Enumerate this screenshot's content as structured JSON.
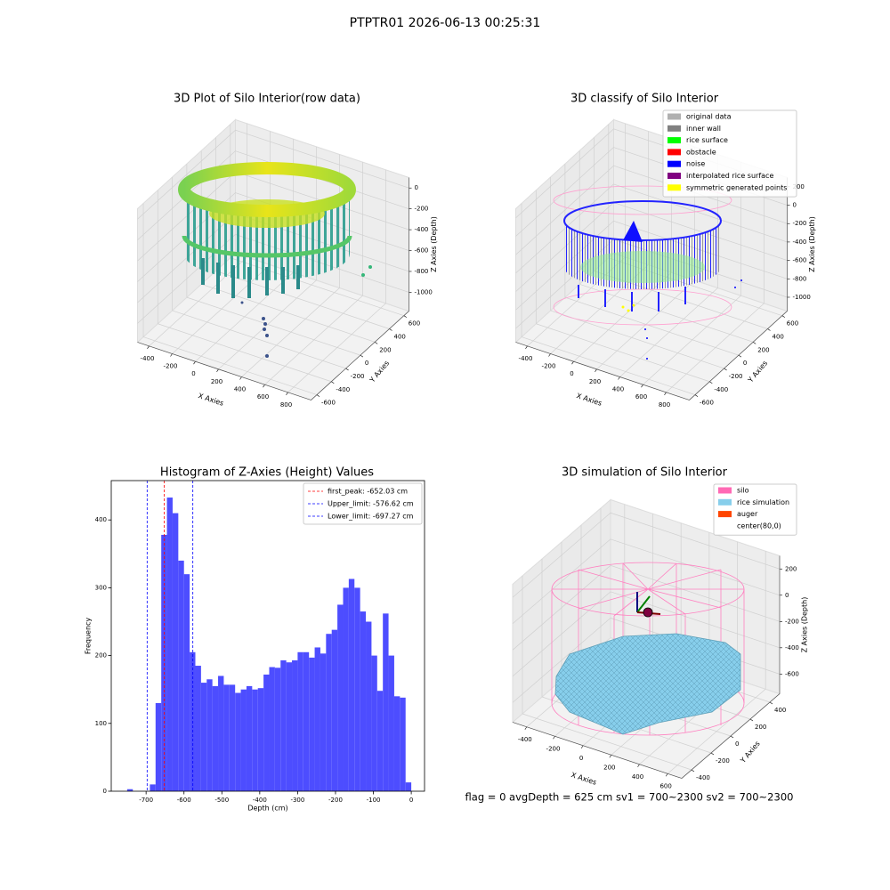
{
  "suptitle": "PTPTR01 2026-06-13 00:25:31",
  "footer": "flag = 0     avgDepth = 625 cm  sv1 = 700~2300  sv2 = 700~2300",
  "chart_data": [
    {
      "type": "scatter3d",
      "title": "3D Plot of Silo Interior(row data)",
      "xlabel": "X Axies",
      "ylabel": "Y Axies",
      "zlabel": "Z Axies (Depth)",
      "xlim": [
        -500,
        1000
      ],
      "ylim": [
        -680,
        670
      ],
      "zlim": [
        -1180,
        100
      ],
      "xticks": [
        -400,
        -200,
        0,
        200,
        400,
        600,
        800
      ],
      "yticks": [
        -600,
        -400,
        -200,
        0,
        200,
        400,
        600
      ],
      "zticks": [
        0,
        -200,
        -400,
        -600,
        -800,
        -1000
      ]
    },
    {
      "type": "scatter3d",
      "title": "3D classify of Silo Interior",
      "xlabel": "X Axies",
      "ylabel": "Y Axies",
      "zlabel": "Z Axies (Depth)",
      "xlim": [
        -500,
        1000
      ],
      "ylim": [
        -680,
        670
      ],
      "zlim": [
        -1150,
        300
      ],
      "xticks": [
        -400,
        -200,
        0,
        200,
        400,
        600,
        800
      ],
      "yticks": [
        -600,
        -400,
        -200,
        0,
        200,
        400,
        600
      ],
      "zticks": [
        200,
        0,
        -200,
        -400,
        -600,
        -800,
        -1000
      ],
      "legend_loc": "upper right",
      "legend": [
        {
          "name": "original data",
          "color": "#b0b0b0"
        },
        {
          "name": "inner wall",
          "color": "#808080"
        },
        {
          "name": "rice surface",
          "color": "#00ff00"
        },
        {
          "name": "obstacle",
          "color": "#ff0000"
        },
        {
          "name": "noise",
          "color": "#0000ff"
        },
        {
          "name": "interpolated rice surface",
          "color": "#800080"
        },
        {
          "name": "symmetric generated points",
          "color": "#ffff00"
        }
      ]
    },
    {
      "type": "histogram",
      "title": "Histogram of Z-Axies (Height) Values",
      "xlabel": "Depth (cm)",
      "ylabel": "Frequency",
      "color": "#4d4dff",
      "xlim": [
        -792,
        35
      ],
      "ylim": [
        0,
        458
      ],
      "xticks": [
        -700,
        -600,
        -500,
        -400,
        -300,
        -200,
        -100,
        0
      ],
      "yticks": [
        0,
        100,
        200,
        300,
        400
      ],
      "bins": [
        -765,
        -750,
        -735,
        -720,
        -705,
        -690,
        -675,
        -660,
        -645,
        -630,
        -615,
        -600,
        -585,
        -570,
        -555,
        -540,
        -525,
        -510,
        -495,
        -480,
        -465,
        -450,
        -435,
        -420,
        -405,
        -390,
        -375,
        -360,
        -345,
        -330,
        -315,
        -300,
        -285,
        -270,
        -255,
        -240,
        -225,
        -210,
        -195,
        -180,
        -165,
        -150,
        -135,
        -120,
        -105,
        -90,
        -75,
        -60,
        -45,
        -30,
        -15,
        0
      ],
      "counts": [
        0,
        3,
        0,
        0,
        0,
        10,
        130,
        378,
        433,
        410,
        340,
        320,
        205,
        185,
        160,
        165,
        155,
        170,
        157,
        157,
        145,
        150,
        155,
        150,
        152,
        172,
        183,
        182,
        193,
        190,
        193,
        205,
        205,
        197,
        212,
        203,
        232,
        238,
        275,
        300,
        313,
        300,
        265,
        250,
        200,
        148,
        262,
        200,
        140,
        138,
        13
      ],
      "legend_loc": "upper right",
      "lines": [
        {
          "value": -652.03,
          "label": "first_peak: -652.03 cm",
          "color": "#ff0000"
        },
        {
          "value": -576.62,
          "label": "Upper_limit: -576.62 cm",
          "color": "#0000ff"
        },
        {
          "value": -697.27,
          "label": "Lower_limit: -697.27 cm",
          "color": "#0000ff"
        }
      ]
    },
    {
      "type": "surface3d",
      "title": "3D simulation of Silo Interior",
      "xlabel": "X Axies",
      "ylabel": "Y Axies",
      "zlabel": "Z Axies (Depth)",
      "xlim": [
        -500,
        700
      ],
      "ylim": [
        -500,
        500
      ],
      "zlim": [
        -750,
        300
      ],
      "xticks": [
        -400,
        -200,
        0,
        200,
        400,
        600
      ],
      "yticks": [
        -400,
        -200,
        0,
        200,
        400
      ],
      "zticks": [
        200,
        0,
        -200,
        -400,
        -600
      ],
      "legend_loc": "upper right",
      "legend": [
        {
          "name": "silo",
          "color": "#ff69b4"
        },
        {
          "name": "rice simulation",
          "color": "#87ceeb"
        },
        {
          "name": "auger",
          "color": "#ff4500"
        },
        {
          "name": "center(80,0)",
          "color": "#ffffff"
        }
      ]
    }
  ]
}
